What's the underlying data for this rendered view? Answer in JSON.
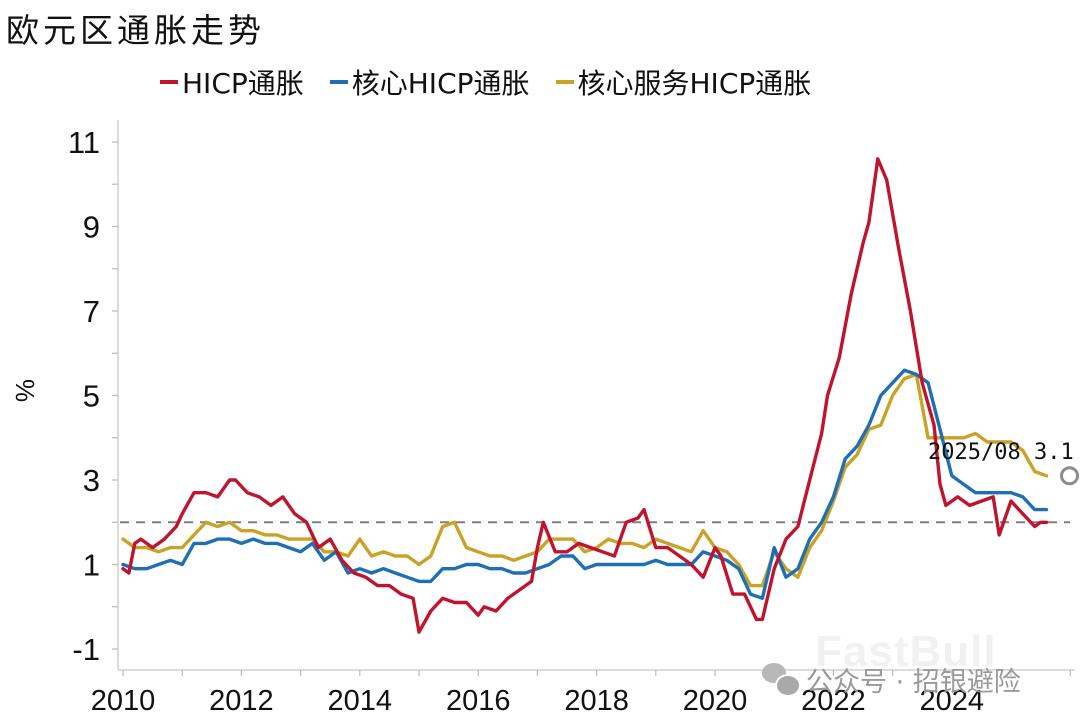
{
  "title": "欧元区通胀走势",
  "legend": [
    {
      "label": "HICP通胀",
      "color": "#C0142E"
    },
    {
      "label": "核心HICP通胀",
      "color": "#1F6FB5"
    },
    {
      "label": "核心服务HICP通胀",
      "color": "#C9A227"
    }
  ],
  "annotation": {
    "date": "2025/08",
    "value": "3.1",
    "text": "2025/08  3.1"
  },
  "watermark": {
    "brand": "FastBull",
    "wechat": "公众号 · 招银避险"
  },
  "chart_data": {
    "type": "line",
    "title": "欧元区通胀走势",
    "xlabel": "",
    "ylabel": "%",
    "ylim": [
      -1.5,
      11.5
    ],
    "yticks": [
      11,
      9,
      7,
      5,
      3,
      1,
      -1
    ],
    "xticks": [
      "2010",
      "2012",
      "2014",
      "2016",
      "2018",
      "2020",
      "2022",
      "2024"
    ],
    "xlim": [
      2010.0,
      2025.9
    ],
    "reference_line": {
      "y": 2,
      "style": "dashed",
      "color": "#7f7f7f"
    },
    "grid": false,
    "legend_position": "top",
    "series": [
      {
        "name": "HICP通胀",
        "color": "#C0142E",
        "x": [
          2010.0,
          2010.1,
          2010.2,
          2010.3,
          2010.5,
          2010.7,
          2010.9,
          2011.0,
          2011.2,
          2011.4,
          2011.6,
          2011.8,
          2011.9,
          2012.1,
          2012.3,
          2012.5,
          2012.7,
          2012.9,
          2013.1,
          2013.3,
          2013.5,
          2013.7,
          2013.9,
          2014.1,
          2014.3,
          2014.5,
          2014.7,
          2014.9,
          2015.0,
          2015.2,
          2015.4,
          2015.6,
          2015.8,
          2016.0,
          2016.1,
          2016.3,
          2016.5,
          2016.7,
          2016.9,
          2017.0,
          2017.1,
          2017.3,
          2017.5,
          2017.7,
          2017.9,
          2018.1,
          2018.3,
          2018.5,
          2018.7,
          2018.8,
          2019.0,
          2019.2,
          2019.4,
          2019.6,
          2019.8,
          2020.0,
          2020.1,
          2020.3,
          2020.5,
          2020.7,
          2020.8,
          2021.0,
          2021.2,
          2021.4,
          2021.6,
          2021.8,
          2021.9,
          2022.1,
          2022.3,
          2022.5,
          2022.6,
          2022.75,
          2022.9,
          2023.1,
          2023.3,
          2023.5,
          2023.7,
          2023.8,
          2023.9,
          2024.1,
          2024.3,
          2024.5,
          2024.7,
          2024.8,
          2025.0,
          2025.2,
          2025.4,
          2025.5,
          2025.6
        ],
        "values": [
          0.9,
          0.8,
          1.5,
          1.6,
          1.4,
          1.6,
          1.9,
          2.2,
          2.7,
          2.7,
          2.6,
          3.0,
          3.0,
          2.7,
          2.6,
          2.4,
          2.6,
          2.2,
          2.0,
          1.4,
          1.6,
          1.1,
          0.8,
          0.7,
          0.5,
          0.5,
          0.3,
          0.2,
          -0.6,
          -0.1,
          0.2,
          0.1,
          0.1,
          -0.2,
          0.0,
          -0.1,
          0.2,
          0.4,
          0.6,
          1.4,
          2.0,
          1.3,
          1.3,
          1.5,
          1.4,
          1.3,
          1.2,
          2.0,
          2.1,
          2.3,
          1.4,
          1.4,
          1.2,
          1.0,
          0.7,
          1.4,
          1.2,
          0.3,
          0.3,
          -0.3,
          -0.3,
          0.9,
          1.6,
          1.9,
          3.0,
          4.1,
          5.0,
          5.9,
          7.4,
          8.6,
          9.1,
          10.6,
          10.1,
          8.5,
          7.0,
          5.3,
          4.3,
          2.9,
          2.4,
          2.6,
          2.4,
          2.5,
          2.6,
          1.7,
          2.5,
          2.2,
          1.9,
          2.0,
          2.0
        ]
      },
      {
        "name": "核心HICP通胀",
        "color": "#1F6FB5",
        "x": [
          2010.0,
          2010.2,
          2010.4,
          2010.6,
          2010.8,
          2011.0,
          2011.2,
          2011.4,
          2011.6,
          2011.8,
          2012.0,
          2012.2,
          2012.4,
          2012.6,
          2012.8,
          2013.0,
          2013.2,
          2013.4,
          2013.6,
          2013.8,
          2014.0,
          2014.2,
          2014.4,
          2014.6,
          2014.8,
          2015.0,
          2015.2,
          2015.4,
          2015.6,
          2015.8,
          2016.0,
          2016.2,
          2016.4,
          2016.6,
          2016.8,
          2017.0,
          2017.2,
          2017.4,
          2017.6,
          2017.8,
          2018.0,
          2018.2,
          2018.4,
          2018.6,
          2018.8,
          2019.0,
          2019.2,
          2019.4,
          2019.6,
          2019.8,
          2020.0,
          2020.2,
          2020.4,
          2020.6,
          2020.8,
          2021.0,
          2021.2,
          2021.4,
          2021.6,
          2021.8,
          2022.0,
          2022.2,
          2022.4,
          2022.6,
          2022.8,
          2023.0,
          2023.2,
          2023.4,
          2023.6,
          2023.8,
          2024.0,
          2024.2,
          2024.4,
          2024.6,
          2024.8,
          2025.0,
          2025.2,
          2025.4,
          2025.6
        ],
        "values": [
          1.0,
          0.9,
          0.9,
          1.0,
          1.1,
          1.0,
          1.5,
          1.5,
          1.6,
          1.6,
          1.5,
          1.6,
          1.5,
          1.5,
          1.4,
          1.3,
          1.5,
          1.1,
          1.3,
          0.8,
          0.9,
          0.8,
          0.9,
          0.8,
          0.7,
          0.6,
          0.6,
          0.9,
          0.9,
          1.0,
          1.0,
          0.9,
          0.9,
          0.8,
          0.8,
          0.9,
          1.0,
          1.2,
          1.2,
          0.9,
          1.0,
          1.0,
          1.0,
          1.0,
          1.0,
          1.1,
          1.0,
          1.0,
          1.0,
          1.3,
          1.2,
          1.1,
          0.9,
          0.3,
          0.2,
          1.4,
          0.7,
          0.9,
          1.6,
          2.0,
          2.6,
          3.5,
          3.8,
          4.3,
          5.0,
          5.3,
          5.6,
          5.5,
          5.3,
          4.2,
          3.1,
          2.9,
          2.7,
          2.7,
          2.7,
          2.7,
          2.6,
          2.3,
          2.3
        ]
      },
      {
        "name": "核心服务HICP通胀",
        "color": "#C9A227",
        "x": [
          2010.0,
          2010.2,
          2010.4,
          2010.6,
          2010.8,
          2011.0,
          2011.2,
          2011.4,
          2011.6,
          2011.8,
          2012.0,
          2012.2,
          2012.4,
          2012.6,
          2012.8,
          2013.0,
          2013.2,
          2013.4,
          2013.6,
          2013.8,
          2014.0,
          2014.2,
          2014.4,
          2014.6,
          2014.8,
          2015.0,
          2015.2,
          2015.4,
          2015.6,
          2015.8,
          2016.0,
          2016.2,
          2016.4,
          2016.6,
          2016.8,
          2017.0,
          2017.2,
          2017.4,
          2017.6,
          2017.8,
          2018.0,
          2018.2,
          2018.4,
          2018.6,
          2018.8,
          2019.0,
          2019.2,
          2019.4,
          2019.6,
          2019.8,
          2020.0,
          2020.2,
          2020.4,
          2020.6,
          2020.8,
          2021.0,
          2021.2,
          2021.4,
          2021.6,
          2021.8,
          2022.0,
          2022.2,
          2022.4,
          2022.6,
          2022.8,
          2023.0,
          2023.2,
          2023.4,
          2023.6,
          2023.8,
          2024.0,
          2024.2,
          2024.4,
          2024.6,
          2024.8,
          2025.0,
          2025.2,
          2025.4,
          2025.6
        ],
        "values": [
          1.6,
          1.4,
          1.4,
          1.3,
          1.4,
          1.4,
          1.7,
          2.0,
          1.9,
          2.0,
          1.8,
          1.8,
          1.7,
          1.7,
          1.6,
          1.6,
          1.6,
          1.3,
          1.3,
          1.2,
          1.6,
          1.2,
          1.3,
          1.2,
          1.2,
          1.0,
          1.2,
          1.9,
          2.0,
          1.4,
          1.3,
          1.2,
          1.2,
          1.1,
          1.2,
          1.3,
          1.6,
          1.6,
          1.6,
          1.3,
          1.4,
          1.6,
          1.5,
          1.5,
          1.4,
          1.6,
          1.5,
          1.4,
          1.3,
          1.8,
          1.4,
          1.3,
          1.0,
          0.5,
          0.5,
          1.3,
          0.9,
          0.7,
          1.4,
          1.8,
          2.5,
          3.3,
          3.6,
          4.2,
          4.3,
          5.0,
          5.4,
          5.5,
          4.0,
          4.0,
          4.0,
          4.0,
          4.1,
          3.9,
          3.9,
          3.9,
          3.7,
          3.2,
          3.1
        ]
      }
    ]
  }
}
